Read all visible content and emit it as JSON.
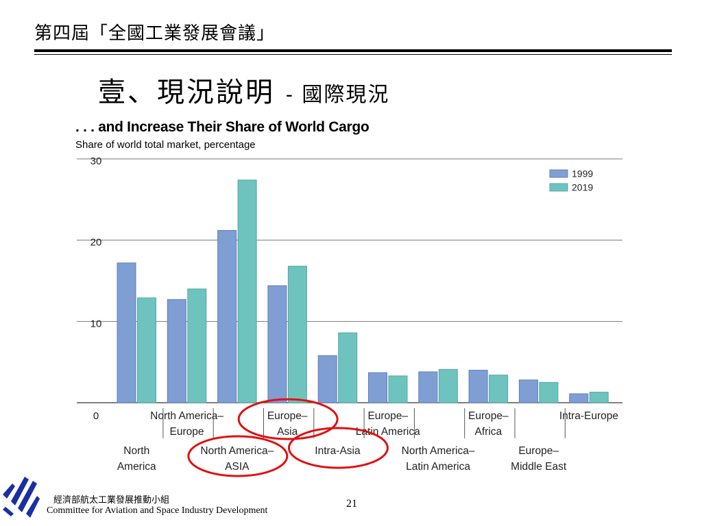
{
  "header": {
    "conference": "第四屆「全國工業發展會議」",
    "title": "壹、現況說明",
    "title_sub": "- 國際現況"
  },
  "colors": {
    "series_1999": "#7f9ed3",
    "series_2019": "#6fc3be",
    "circle": "#e01010"
  },
  "chart_data": {
    "type": "bar",
    "title": ". . . and Increase Their Share of World Cargo",
    "subtitle": "Share of world total market, percentage",
    "ylim": [
      0,
      30
    ],
    "yticks": [
      "30",
      "20",
      "10",
      "0"
    ],
    "grid": true,
    "legend_position": "top-right",
    "categories": [
      "North America",
      "North America– Europe",
      "North America– ASIA",
      "Europe– Asia",
      "Intra-Asia",
      "Europe– Latin America",
      "North America– Latin America",
      "Europe– Africa",
      "Europe– Middle East",
      "Intra-Europe"
    ],
    "category_labels": [
      {
        "lines": [
          "North",
          "America"
        ],
        "row": "low"
      },
      {
        "lines": [
          "North America–",
          "Europe"
        ],
        "row": "high"
      },
      {
        "lines": [
          "North America–",
          "ASIA"
        ],
        "row": "low"
      },
      {
        "lines": [
          "Europe–",
          "Asia"
        ],
        "row": "high"
      },
      {
        "lines": [
          "Intra-Asia"
        ],
        "row": "low"
      },
      {
        "lines": [
          "Europe–",
          "Latin America"
        ],
        "row": "high"
      },
      {
        "lines": [
          "North America–",
          "Latin America"
        ],
        "row": "low"
      },
      {
        "lines": [
          "Europe–",
          "Africa"
        ],
        "row": "high"
      },
      {
        "lines": [
          "Europe–",
          "Middle East"
        ],
        "row": "low"
      },
      {
        "lines": [
          "Intra-Europe"
        ],
        "row": "high"
      }
    ],
    "series": [
      {
        "name": "1999",
        "values": [
          17.2,
          12.7,
          21.2,
          14.4,
          5.8,
          3.7,
          3.8,
          4.0,
          2.8,
          1.1
        ]
      },
      {
        "name": "2019",
        "values": [
          12.9,
          14.0,
          27.4,
          16.8,
          8.6,
          3.3,
          4.1,
          3.4,
          2.5,
          1.3
        ]
      }
    ],
    "highlighted_categories": [
      "Europe– Asia",
      "North America– ASIA",
      "Intra-Asia"
    ]
  },
  "footer": {
    "committee_cn": "經濟部航太工業發展推動小組",
    "committee_en": "Committee for Aviation and Space Industry Development",
    "page": "21"
  }
}
